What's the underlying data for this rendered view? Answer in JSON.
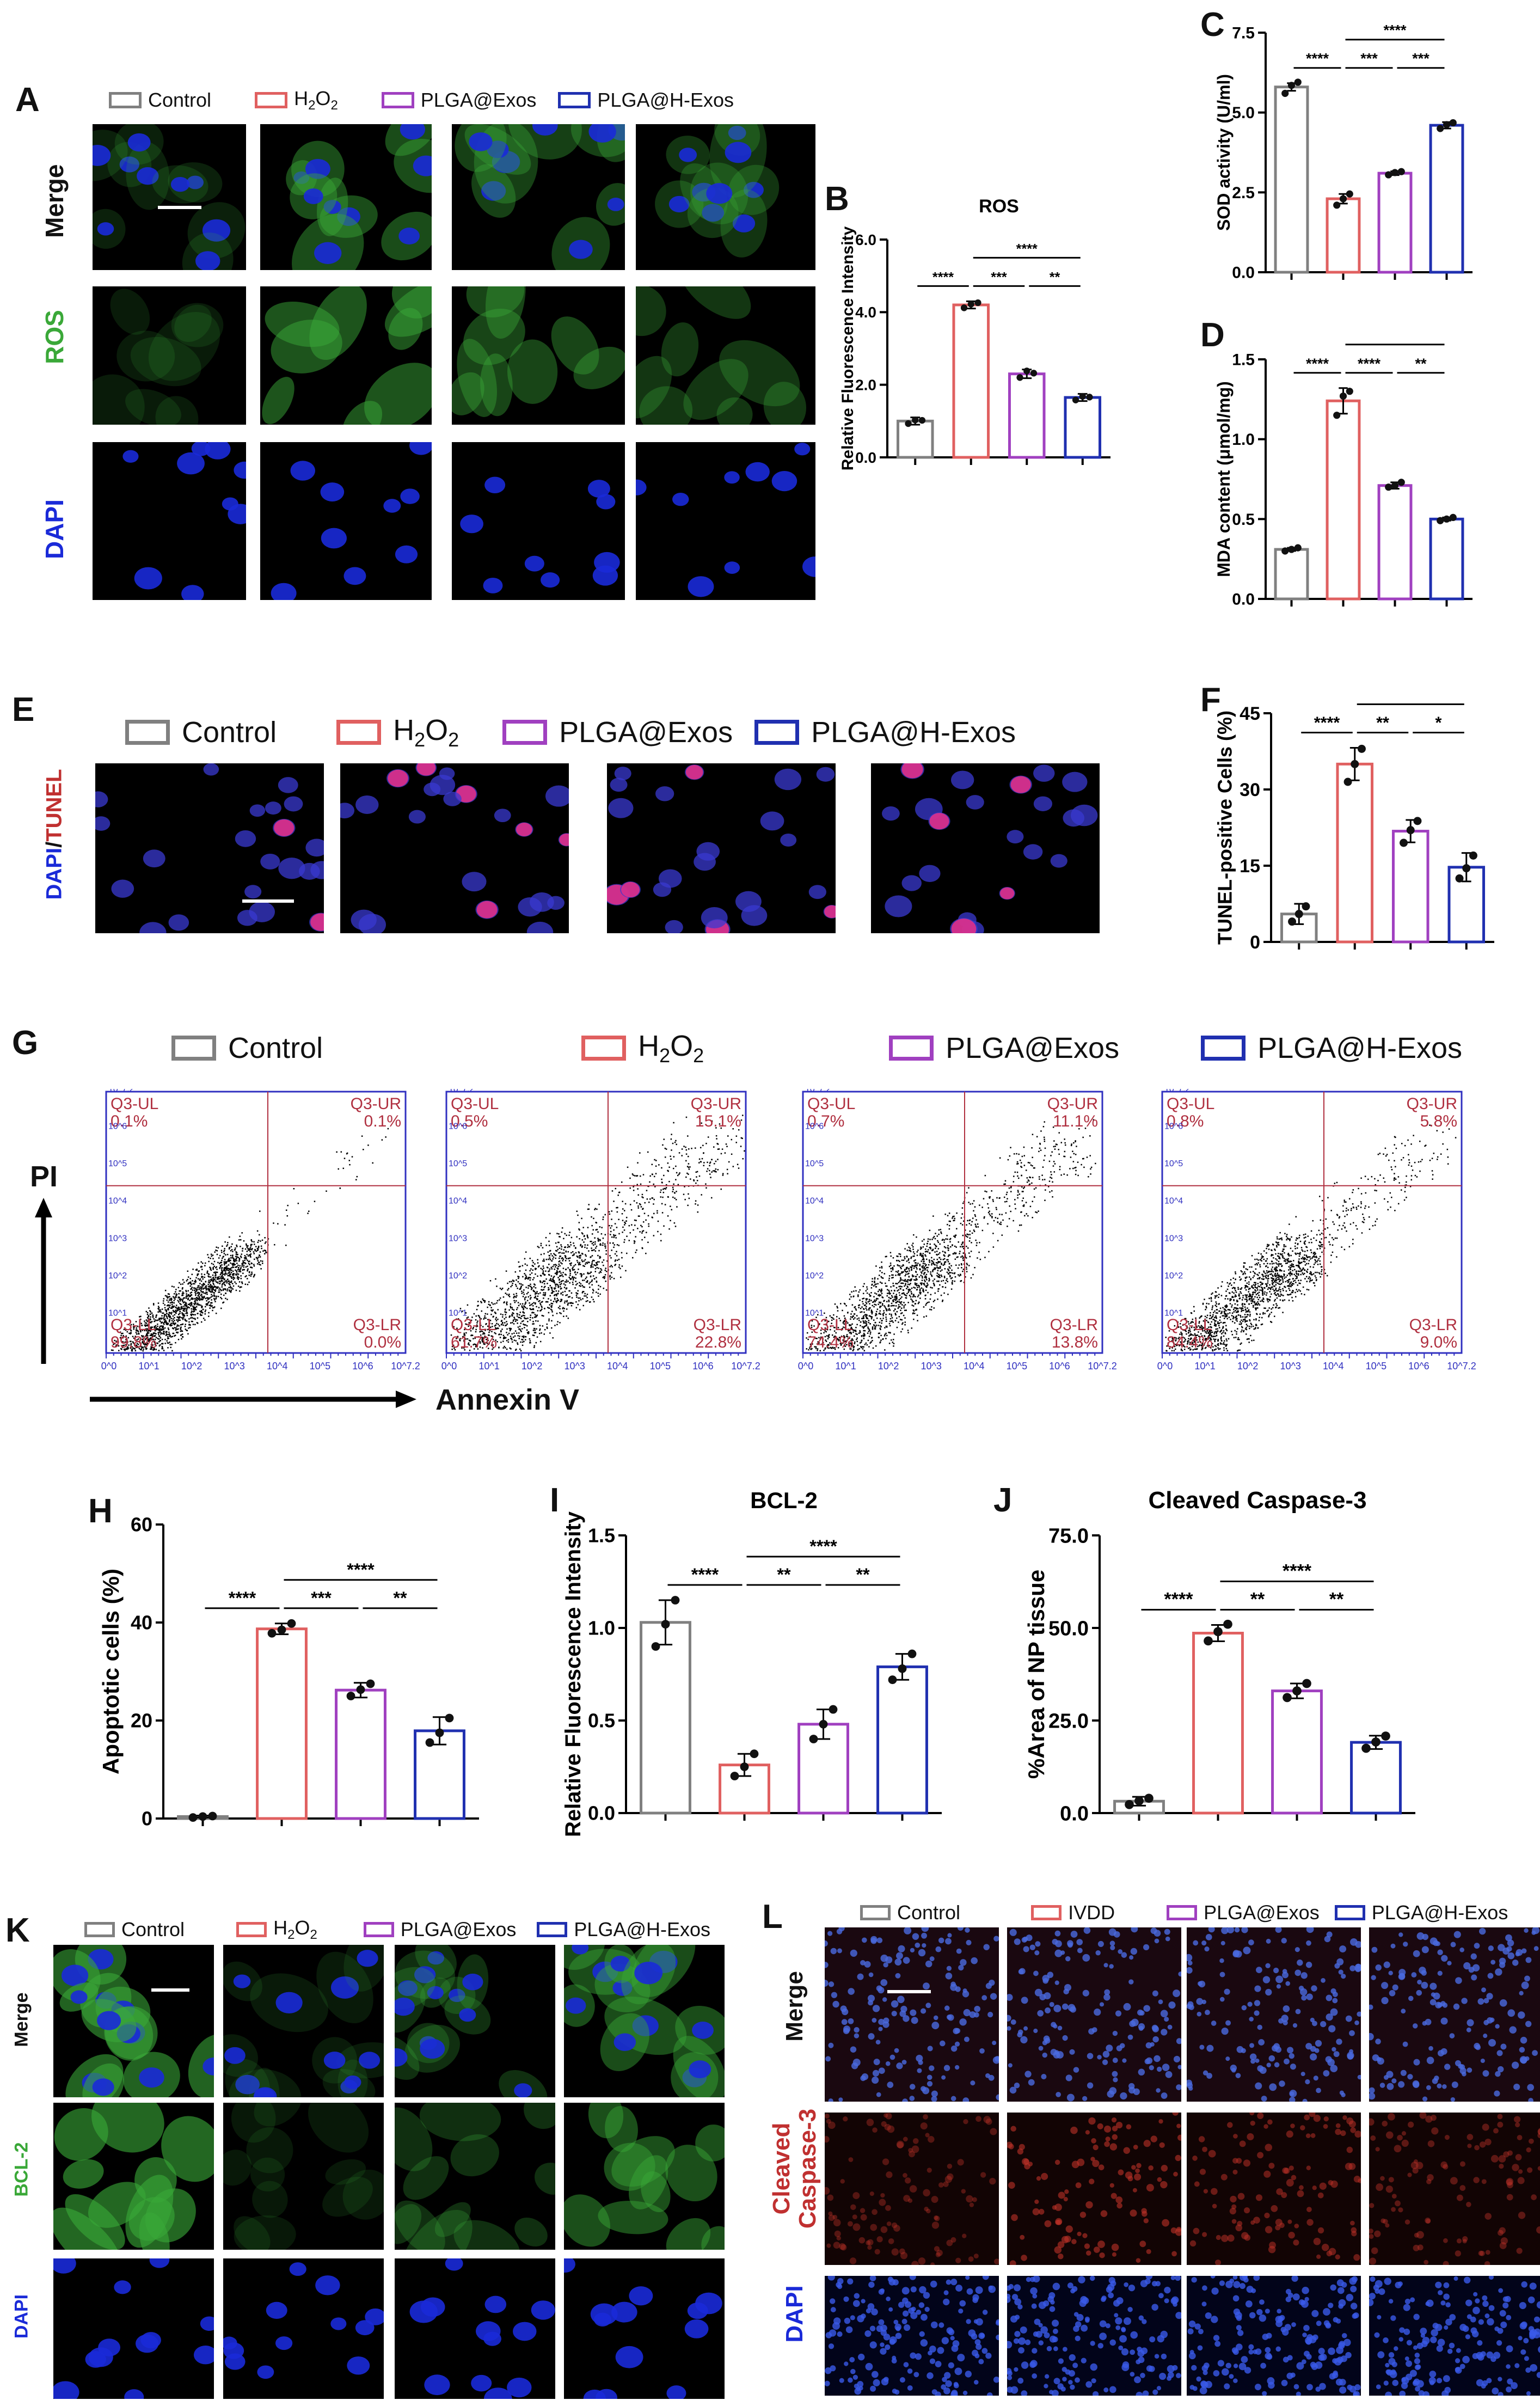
{
  "colors": {
    "control": "#808080",
    "h2o2": "#e06060",
    "plga_exos": "#a040c0",
    "plga_h_exos": "#2030b0",
    "micro_green": "#3aa838",
    "micro_blue": "#1a2ad8",
    "micro_red": "#c03030",
    "flow_border": "#3030c0",
    "flow_quad_text": "#b03040"
  },
  "panel_labels": {
    "A": "A",
    "B": "B",
    "C": "C",
    "D": "D",
    "E": "E",
    "F": "F",
    "G": "G",
    "H": "H",
    "I": "I",
    "J": "J",
    "K": "K",
    "L": "L"
  },
  "legend": {
    "control": "Control",
    "h2o2_main": "H",
    "h2o2_sub": "2",
    "h2o2_o": "O",
    "h2o2_sub2": "2",
    "plga_exos": "PLGA@Exos",
    "plga_h_exos": "PLGA@H-Exos",
    "ivdd": "IVDD"
  },
  "row_labels": {
    "merge": "Merge",
    "ros": "ROS",
    "dapi": "DAPI",
    "dapi_tunel_dapi": "DAPI",
    "dapi_tunel_slash": "/",
    "dapi_tunel_tunel": "TUNEL",
    "bcl2": "BCL-2",
    "cleaved": "Cleaved",
    "caspase3": "Caspase-3"
  },
  "flow": {
    "y_axis": "PI",
    "x_axis": "Annexin V",
    "x_ticks": [
      "10^0",
      "10^1",
      "10^2",
      "10^3",
      "10^4",
      "10^5",
      "10^6",
      "10^7.2"
    ],
    "y_ticks": [
      "10^1",
      "10^2",
      "10^3",
      "10^4",
      "10^5",
      "10^6",
      "10^7.2"
    ],
    "quad_names": [
      "Q3-UL",
      "Q3-UR",
      "Q3-LL",
      "Q3-LR"
    ],
    "plots": [
      {
        "group": "Control",
        "UL": "0.1%",
        "UR": "0.1%",
        "LL": "99.8%",
        "LR": "0.0%"
      },
      {
        "group": "H2O2",
        "UL": "0.5%",
        "UR": "15.1%",
        "LL": "61.7%",
        "LR": "22.8%"
      },
      {
        "group": "PLGA@Exos",
        "UL": "0.7%",
        "UR": "11.1%",
        "LL": "74.4%",
        "LR": "13.8%"
      },
      {
        "group": "PLGA@H-Exos",
        "UL": "0.8%",
        "UR": "5.8%",
        "LL": "84.4%",
        "LR": "9.0%"
      }
    ]
  },
  "chart_data": [
    {
      "id": "B",
      "type": "bar",
      "title": "ROS",
      "ylabel": "Relative Fluorescence Intensity",
      "ylim": [
        0,
        6
      ],
      "yticks": [
        "0.0",
        "2.0",
        "4.0",
        "6.0"
      ],
      "yvals": [
        0,
        2,
        4,
        6
      ],
      "categories": [
        "Control",
        "H2O2",
        "PLGA@Exos",
        "PLGA@H-Exos"
      ],
      "values": [
        1.0,
        4.2,
        2.3,
        1.65
      ],
      "errors": [
        0.1,
        0.1,
        0.12,
        0.1
      ],
      "points": [
        [
          0.93,
          1.03,
          1.02
        ],
        [
          4.12,
          4.22,
          4.26
        ],
        [
          2.2,
          2.38,
          2.32
        ],
        [
          1.58,
          1.68,
          1.66
        ]
      ],
      "sig": [
        {
          "a": 0,
          "b": 1,
          "label": "****",
          "level": 0
        },
        {
          "a": 1,
          "b": 2,
          "label": "***",
          "level": 0
        },
        {
          "a": 2,
          "b": 3,
          "label": "**",
          "level": 0
        },
        {
          "a": 1,
          "b": 3,
          "label": "****",
          "level": 1
        }
      ]
    },
    {
      "id": "C",
      "type": "bar",
      "title": "",
      "ylabel": "SOD activity (U/ml)",
      "ylim": [
        0,
        7.5
      ],
      "yticks": [
        "0.0",
        "2.5",
        "5.0",
        "7.5"
      ],
      "yvals": [
        0,
        2.5,
        5,
        7.5
      ],
      "categories": [
        "Control",
        "H2O2",
        "PLGA@Exos",
        "PLGA@H-Exos"
      ],
      "values": [
        5.8,
        2.3,
        3.1,
        4.6
      ],
      "errors": [
        0.12,
        0.15,
        0.06,
        0.1
      ],
      "points": [
        [
          5.6,
          5.85,
          5.95
        ],
        [
          2.1,
          2.3,
          2.45
        ],
        [
          3.05,
          3.12,
          3.15
        ],
        [
          4.5,
          4.62,
          4.68
        ]
      ],
      "sig": [
        {
          "a": 0,
          "b": 1,
          "label": "****",
          "level": 0
        },
        {
          "a": 1,
          "b": 2,
          "label": "***",
          "level": 0
        },
        {
          "a": 2,
          "b": 3,
          "label": "***",
          "level": 0
        },
        {
          "a": 1,
          "b": 3,
          "label": "****",
          "level": 1
        }
      ]
    },
    {
      "id": "D",
      "type": "bar",
      "title": "",
      "ylabel": "MDA content (μmol/mg)",
      "ylim": [
        0,
        1.5
      ],
      "yticks": [
        "0.0",
        "0.5",
        "1.0",
        "1.5"
      ],
      "yvals": [
        0,
        0.5,
        1,
        1.5
      ],
      "categories": [
        "Control",
        "H2O2",
        "PLGA@Exos",
        "PLGA@H-Exos"
      ],
      "values": [
        0.31,
        1.24,
        0.71,
        0.5
      ],
      "errors": [
        0.01,
        0.08,
        0.02,
        0.01
      ],
      "points": [
        [
          0.3,
          0.31,
          0.32
        ],
        [
          1.15,
          1.27,
          1.3
        ],
        [
          0.7,
          0.71,
          0.73
        ],
        [
          0.49,
          0.5,
          0.51
        ]
      ],
      "sig": [
        {
          "a": 0,
          "b": 1,
          "label": "****",
          "level": 0
        },
        {
          "a": 1,
          "b": 2,
          "label": "****",
          "level": 0
        },
        {
          "a": 2,
          "b": 3,
          "label": "**",
          "level": 0
        },
        {
          "a": 1,
          "b": 3,
          "label": "****",
          "level": 1
        }
      ]
    },
    {
      "id": "F",
      "type": "bar",
      "title": "",
      "ylabel": "TUNEL-positive Cells (%)",
      "ylim": [
        0,
        45
      ],
      "yticks": [
        "0",
        "15",
        "30",
        "45"
      ],
      "yvals": [
        0,
        15,
        30,
        45
      ],
      "categories": [
        "Control",
        "H2O2",
        "PLGA@Exos",
        "PLGA@H-Exos"
      ],
      "values": [
        5.5,
        35,
        21.8,
        14.7
      ],
      "errors": [
        2,
        3.2,
        2.2,
        2.8
      ],
      "points": [
        [
          4,
          5.5,
          7
        ],
        [
          31.5,
          35,
          38
        ],
        [
          19.5,
          22,
          23.8
        ],
        [
          12.5,
          14.5,
          17
        ]
      ],
      "sig": [
        {
          "a": 0,
          "b": 1,
          "label": "****",
          "level": 0
        },
        {
          "a": 1,
          "b": 2,
          "label": "**",
          "level": 0
        },
        {
          "a": 2,
          "b": 3,
          "label": "*",
          "level": 0
        },
        {
          "a": 1,
          "b": 3,
          "label": "****",
          "level": 1
        }
      ]
    },
    {
      "id": "H",
      "type": "bar",
      "title": "",
      "ylabel": "Apoptotic cells (%)",
      "ylim": [
        0,
        60
      ],
      "yticks": [
        "0",
        "20",
        "40",
        "60"
      ],
      "yvals": [
        0,
        20,
        40,
        60
      ],
      "categories": [
        "Control",
        "H2O2",
        "PLGA@Exos",
        "PLGA@H-Exos"
      ],
      "values": [
        0.4,
        38.7,
        26.2,
        17.9
      ],
      "errors": [
        0.2,
        1.1,
        1.5,
        2.8
      ],
      "points": [
        [
          0.2,
          0.4,
          0.5
        ],
        [
          37.8,
          38.5,
          39.8
        ],
        [
          25,
          26.3,
          27.5
        ],
        [
          15.5,
          17.5,
          20.5
        ]
      ],
      "sig": [
        {
          "a": 0,
          "b": 1,
          "label": "****",
          "level": 0
        },
        {
          "a": 1,
          "b": 2,
          "label": "***",
          "level": 0
        },
        {
          "a": 2,
          "b": 3,
          "label": "**",
          "level": 0
        },
        {
          "a": 1,
          "b": 3,
          "label": "****",
          "level": 1
        }
      ]
    },
    {
      "id": "I",
      "type": "bar",
      "title": "BCL-2",
      "ylabel": "Relative Fluorescence Intensity",
      "ylim": [
        0,
        1.5
      ],
      "yticks": [
        "0.0",
        "0.5",
        "1.0",
        "1.5"
      ],
      "yvals": [
        0,
        0.5,
        1,
        1.5
      ],
      "categories": [
        "Control",
        "H2O2",
        "PLGA@Exos",
        "PLGA@H-Exos"
      ],
      "values": [
        1.03,
        0.26,
        0.48,
        0.79
      ],
      "errors": [
        0.12,
        0.06,
        0.08,
        0.07
      ],
      "points": [
        [
          0.9,
          1.02,
          1.15
        ],
        [
          0.2,
          0.25,
          0.32
        ],
        [
          0.4,
          0.48,
          0.56
        ],
        [
          0.72,
          0.78,
          0.86
        ]
      ],
      "sig": [
        {
          "a": 0,
          "b": 1,
          "label": "****",
          "level": 0
        },
        {
          "a": 1,
          "b": 2,
          "label": "**",
          "level": 0
        },
        {
          "a": 2,
          "b": 3,
          "label": "**",
          "level": 0
        },
        {
          "a": 1,
          "b": 3,
          "label": "****",
          "level": 1
        }
      ]
    },
    {
      "id": "J",
      "type": "bar",
      "title": "Cleaved Caspase-3",
      "ylabel": "%Area of NP tissue",
      "ylim": [
        0,
        75
      ],
      "yticks": [
        "0.0",
        "25.0",
        "50.0",
        "75.0"
      ],
      "yvals": [
        0,
        25,
        50,
        75
      ],
      "categories": [
        "Control",
        "IVDD",
        "PLGA@Exos",
        "PLGA@H-Exos"
      ],
      "values": [
        3.2,
        48.6,
        33,
        19.1
      ],
      "errors": [
        1.2,
        2.2,
        2,
        1.8
      ],
      "points": [
        [
          2.3,
          3.3,
          4
        ],
        [
          46.5,
          49,
          51
        ],
        [
          31.2,
          33,
          35
        ],
        [
          17.5,
          19.2,
          20.8
        ]
      ],
      "sig": [
        {
          "a": 0,
          "b": 1,
          "label": "****",
          "level": 0
        },
        {
          "a": 1,
          "b": 2,
          "label": "**",
          "level": 0
        },
        {
          "a": 2,
          "b": 3,
          "label": "**",
          "level": 0
        },
        {
          "a": 1,
          "b": 3,
          "label": "****",
          "level": 1
        }
      ]
    }
  ]
}
